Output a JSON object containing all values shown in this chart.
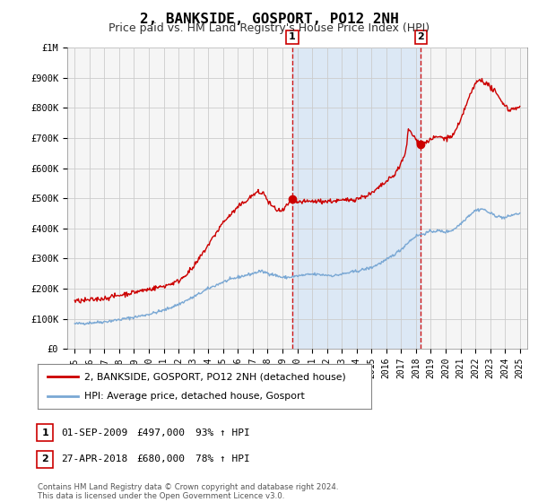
{
  "title": "2, BANKSIDE, GOSPORT, PO12 2NH",
  "subtitle": "Price paid vs. HM Land Registry's House Price Index (HPI)",
  "title_fontsize": 11.5,
  "subtitle_fontsize": 9,
  "background_color": "#ffffff",
  "plot_bg_color": "#f5f5f5",
  "shade_color": "#dce8f5",
  "grid_color": "#cccccc",
  "red_line_color": "#cc0000",
  "blue_line_color": "#7aa8d4",
  "marker1_date_x": 2009.667,
  "marker1_y": 497000,
  "marker2_date_x": 2018.33,
  "marker2_y": 680000,
  "vline1_x": 2009.667,
  "vline2_x": 2018.33,
  "ylim": [
    0,
    1000000
  ],
  "xlim": [
    1994.5,
    2025.5
  ],
  "yticks": [
    0,
    100000,
    200000,
    300000,
    400000,
    500000,
    600000,
    700000,
    800000,
    900000,
    1000000
  ],
  "ytick_labels": [
    "£0",
    "£100K",
    "£200K",
    "£300K",
    "£400K",
    "£500K",
    "£600K",
    "£700K",
    "£800K",
    "£900K",
    "£1M"
  ],
  "xtick_years": [
    1995,
    1996,
    1997,
    1998,
    1999,
    2000,
    2001,
    2002,
    2003,
    2004,
    2005,
    2006,
    2007,
    2008,
    2009,
    2010,
    2011,
    2012,
    2013,
    2014,
    2015,
    2016,
    2017,
    2018,
    2019,
    2020,
    2021,
    2022,
    2023,
    2024,
    2025
  ],
  "legend_label_red": "2, BANKSIDE, GOSPORT, PO12 2NH (detached house)",
  "legend_label_blue": "HPI: Average price, detached house, Gosport",
  "table_row1_label": "1",
  "table_row1_date": "01-SEP-2009",
  "table_row1_price": "£497,000",
  "table_row1_hpi": "93% ↑ HPI",
  "table_row2_label": "2",
  "table_row2_date": "27-APR-2018",
  "table_row2_price": "£680,000",
  "table_row2_hpi": "78% ↑ HPI",
  "footer": "Contains HM Land Registry data © Crown copyright and database right 2024.\nThis data is licensed under the Open Government Licence v3.0."
}
